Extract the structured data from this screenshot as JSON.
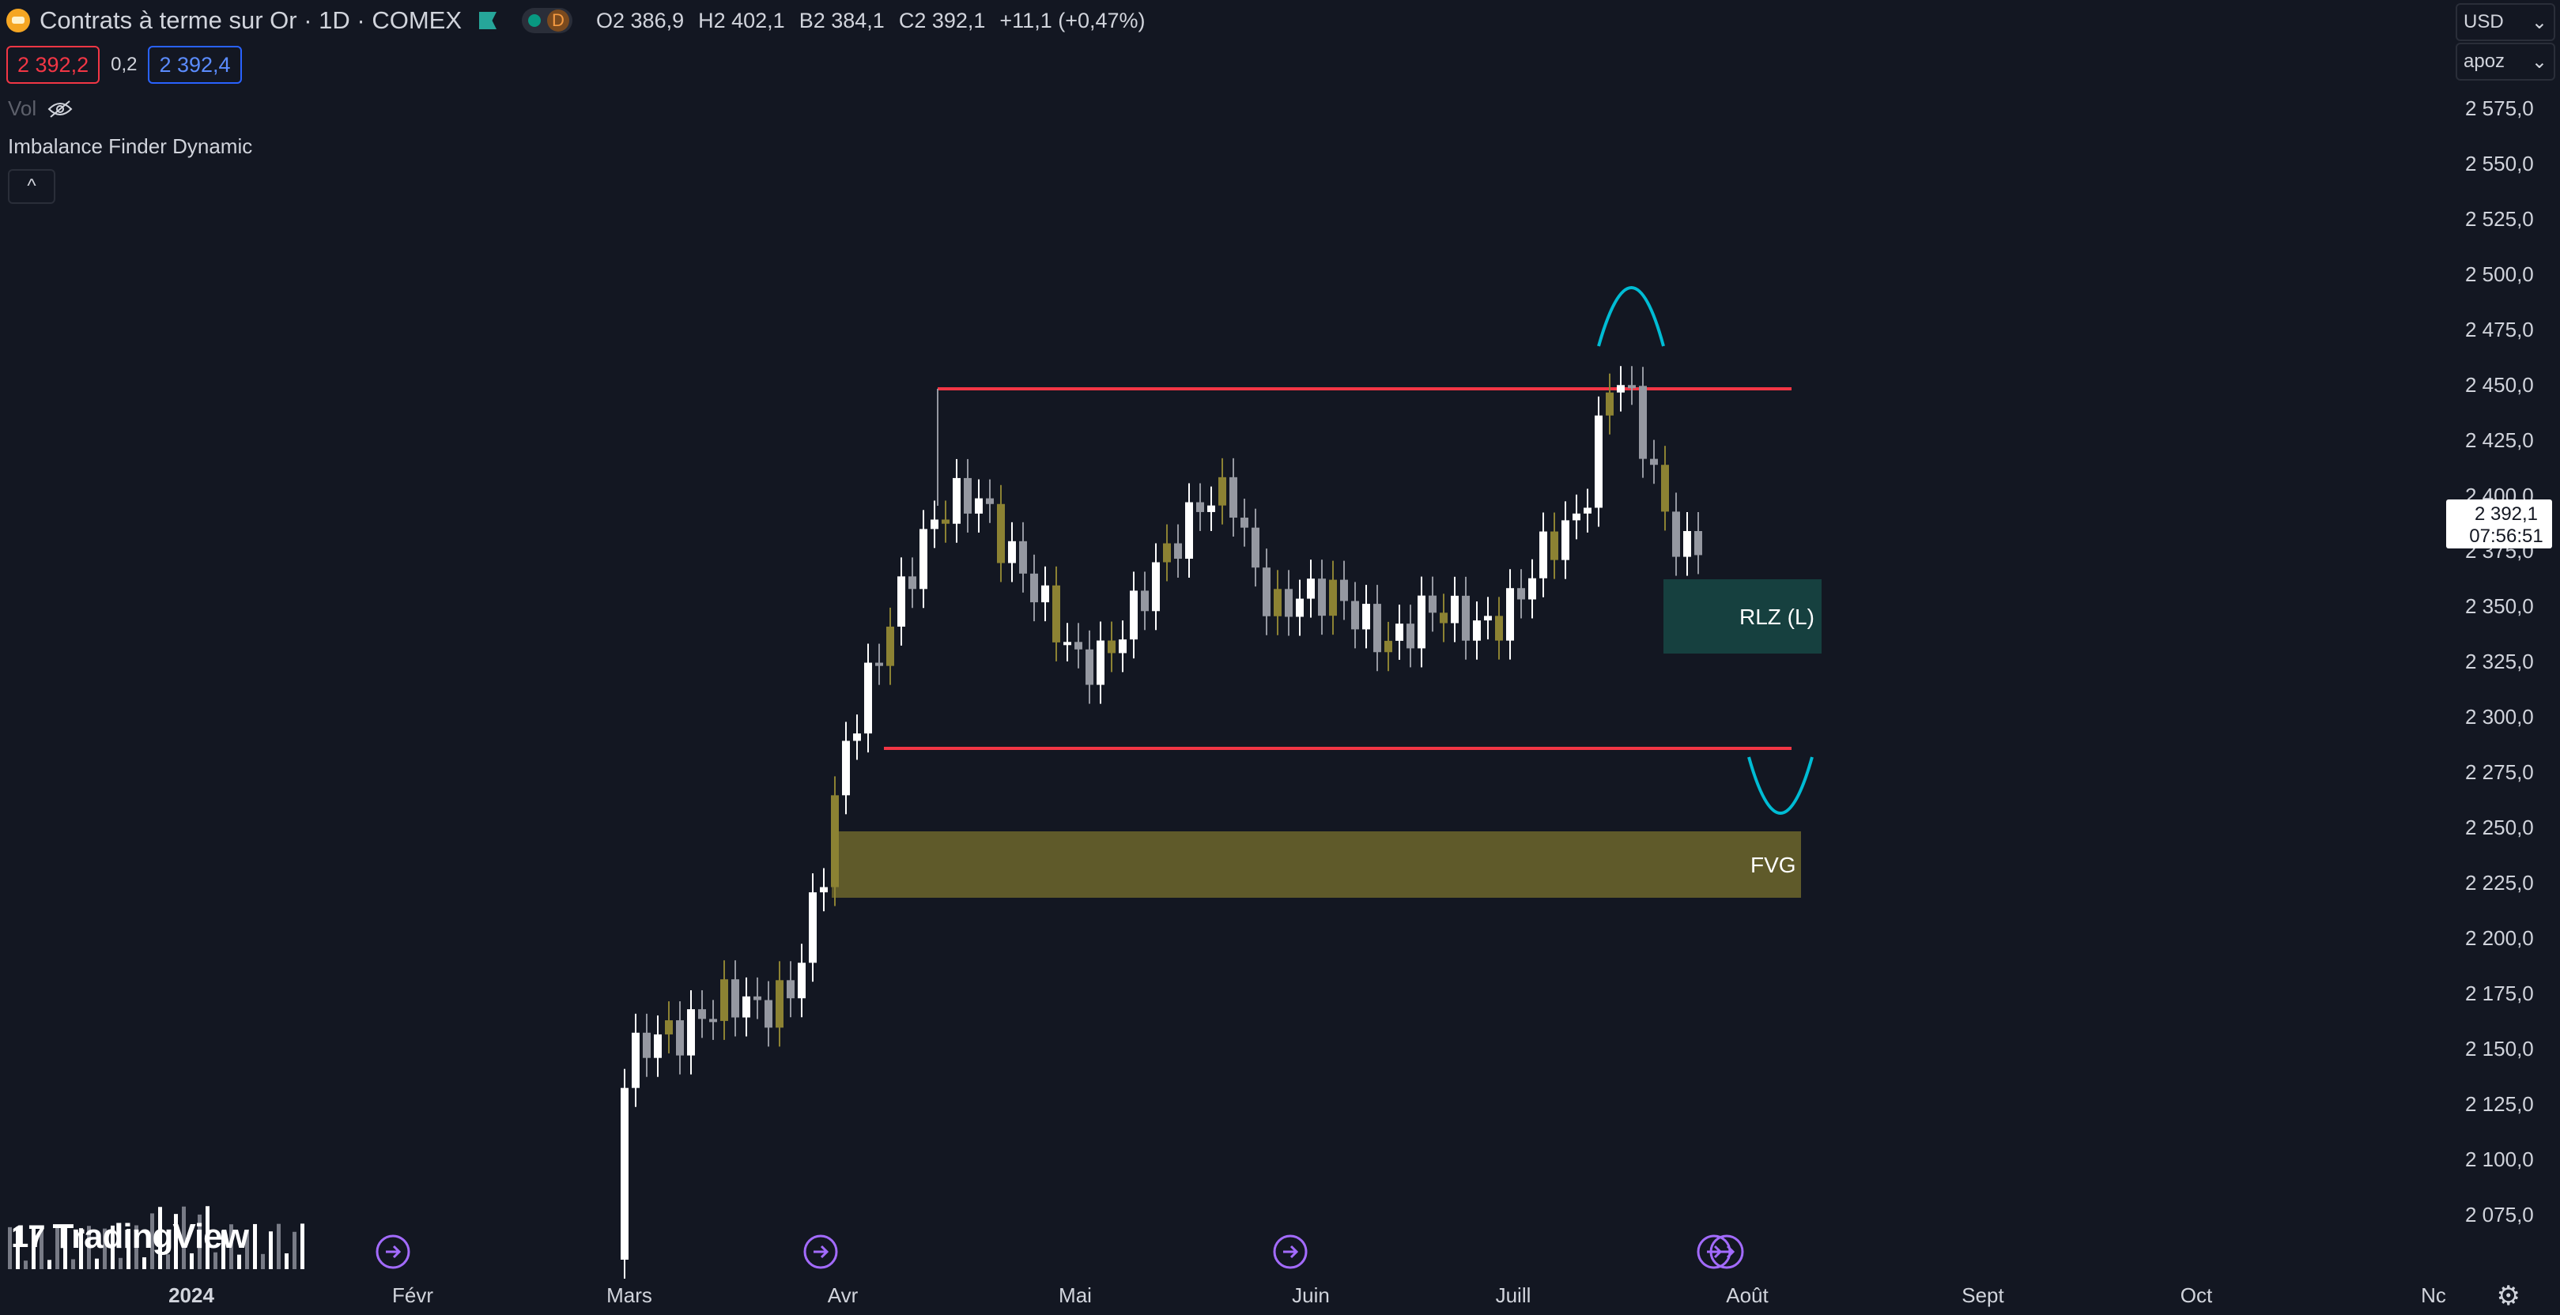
{
  "header": {
    "title": "Contrats à terme sur Or · 1D · COMEX",
    "interval_badge": "D",
    "ohlc": [
      {
        "k": "O",
        "v": "2 386,9"
      },
      {
        "k": "H",
        "v": "2 402,1"
      },
      {
        "k": "B",
        "v": "2 384,1"
      },
      {
        "k": "C",
        "v": "2 392,1"
      }
    ],
    "change": "+11,1 (+0,47%)"
  },
  "trade": {
    "sell": "2 392,2",
    "spread": "0,2",
    "buy": "2 392,4"
  },
  "vol_label": "Vol",
  "indicator_name": "Imbalance Finder Dynamic",
  "collapse_label": "^",
  "currency_select": "USD",
  "unit_select": "apoz",
  "price_scale": [
    "2 575,0",
    "2 550,0",
    "2 525,0",
    "2 500,0",
    "2 475,0",
    "2 450,0",
    "2 425,0",
    "2 400,0",
    "2 375,0",
    "2 350,0",
    "2 325,0",
    "2 300,0",
    "2 275,0",
    "2 250,0",
    "2 225,0",
    "2 200,0",
    "2 175,0",
    "2 150,0",
    "2 125,0",
    "2 100,0",
    "2 075,0"
  ],
  "last_price": {
    "price": "2 392,1",
    "countdown": "07:56:51"
  },
  "time_axis": [
    "2024",
    "Févr",
    "Mars",
    "Avr",
    "Mai",
    "Juin",
    "Juill",
    "Août",
    "Sept",
    "Oct",
    "Nc"
  ],
  "zones": {
    "rlz": "RLZ (L)",
    "fvg": "FVG"
  },
  "logo": {
    "mark": "17",
    "text": "TradingView"
  },
  "colors": {
    "bg": "#131722",
    "bull": "#ffffff",
    "bear": "#9598a1",
    "imbalance": "#8c8233",
    "range_line": "#f23645",
    "arc": "#00bcd4",
    "rlz": "#16403f",
    "fvg": "#5f5a2a",
    "event": "#a36bff"
  },
  "icons": {
    "gear": "gear-icon",
    "event": "arrow-circle-icon",
    "hidden": "eye-off-icon"
  }
}
